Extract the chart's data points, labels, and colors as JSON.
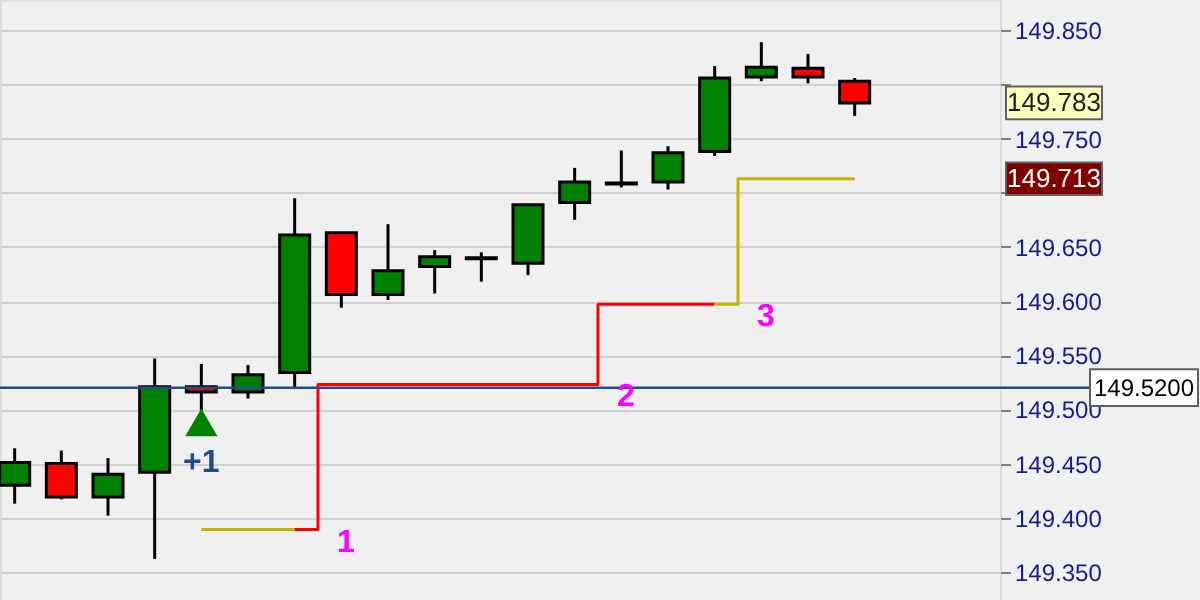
{
  "chart_data": {
    "type": "candlestick",
    "categories": [
      null,
      null,
      null,
      null,
      null,
      null,
      null,
      null,
      null,
      null,
      null,
      null,
      null,
      null,
      null,
      null,
      null,
      null,
      null
    ],
    "ohlc": [
      [
        149.43,
        149.464,
        149.413,
        149.451
      ],
      [
        149.45,
        149.462,
        149.417,
        149.419
      ],
      [
        149.419,
        149.455,
        149.402,
        149.44
      ],
      [
        149.442,
        149.547,
        149.362,
        149.521
      ],
      [
        149.521,
        149.542,
        149.499,
        149.516
      ],
      [
        149.516,
        149.541,
        149.51,
        149.532
      ],
      [
        149.534,
        149.695,
        149.519,
        149.661
      ],
      [
        149.663,
        149.663,
        149.594,
        149.606
      ],
      [
        149.606,
        149.671,
        149.601,
        149.628
      ],
      [
        149.632,
        149.647,
        149.607,
        149.641
      ],
      [
        149.639,
        149.645,
        149.618,
        149.64
      ],
      [
        149.635,
        149.689,
        149.624,
        149.689
      ],
      [
        149.691,
        149.723,
        149.675,
        149.71
      ],
      [
        149.708,
        149.739,
        149.705,
        149.709
      ],
      [
        149.71,
        149.743,
        149.703,
        149.737
      ],
      [
        149.738,
        149.817,
        149.734,
        149.806
      ],
      [
        149.807,
        149.839,
        149.803,
        149.816
      ],
      [
        149.815,
        149.828,
        149.801,
        149.807
      ],
      [
        149.803,
        149.806,
        149.771,
        149.783
      ]
    ],
    "colors": [
      "#008000",
      "#ff0000",
      "#008000",
      "#008000",
      "#ff0000",
      "#008000",
      "#008000",
      "#ff0000",
      "#008000",
      "#008000",
      "#008000",
      "#008000",
      "#008000",
      "#008000",
      "#008000",
      "#008000",
      "#008000",
      "#ff0000",
      "#ff0000"
    ],
    "ylim": [
      149.324,
      149.878
    ],
    "yticks": [
      {
        "value": 149.35,
        "label": "149.350"
      },
      {
        "value": 149.4,
        "label": "149.400"
      },
      {
        "value": 149.45,
        "label": "149.450"
      },
      {
        "value": 149.5,
        "label": "149.500"
      },
      {
        "value": 149.55,
        "label": "149.550"
      },
      {
        "value": 149.6,
        "label": "149.600"
      },
      {
        "value": 149.65,
        "label": "149.650"
      },
      {
        "value": 149.7,
        "label": null
      },
      {
        "value": 149.75,
        "label": "149.750"
      },
      {
        "value": 149.8,
        "label": null
      },
      {
        "value": 149.85,
        "label": "149.850"
      }
    ],
    "grid": "y",
    "tick_labels": "y",
    "series": [
      {
        "type": "step",
        "color": "#c8b400",
        "values": [
          null,
          null,
          null,
          null,
          149.389,
          149.389,
          149.389,
          null,
          null,
          null,
          null,
          null,
          null,
          null,
          null,
          null,
          null,
          null,
          null
        ]
      },
      {
        "type": "step",
        "color": "#ff0000",
        "values": [
          null,
          null,
          null,
          null,
          null,
          null,
          149.389,
          149.523,
          149.523,
          149.523,
          149.523,
          149.523,
          149.523,
          149.597,
          149.597,
          149.597,
          null,
          null,
          null
        ]
      },
      {
        "type": "step",
        "color": "#c8b400",
        "values": [
          null,
          null,
          null,
          null,
          null,
          null,
          null,
          null,
          null,
          null,
          null,
          null,
          null,
          null,
          null,
          149.597,
          149.713,
          149.713,
          149.713
        ]
      },
      {
        "type": "scatter",
        "marker": "triangle",
        "color": "#008000",
        "values": [
          null,
          null,
          null,
          null,
          149.488,
          null,
          null,
          null,
          null,
          null,
          null,
          null,
          null,
          null,
          null,
          null,
          null,
          null,
          null
        ]
      }
    ],
    "ref_lines": [
      {
        "axis": "y",
        "value": 149.52,
        "label": "149.5200",
        "color": "#1f4e8c"
      }
    ],
    "annotations": [
      "+1",
      "1",
      "2",
      "3",
      "149.783",
      "149.713"
    ]
  }
}
